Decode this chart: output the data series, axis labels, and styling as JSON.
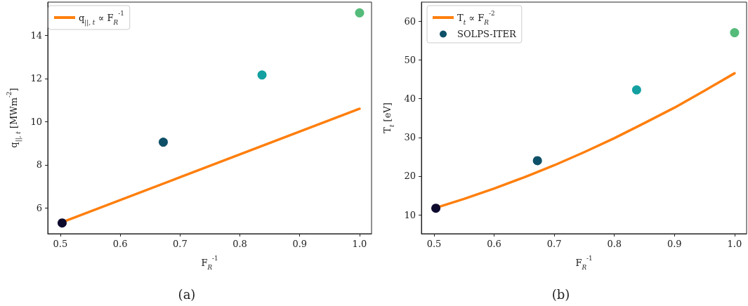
{
  "chart_data": [
    {
      "type": "scatter",
      "xlabel": "F$_{R}$$^{-1}$",
      "ylabel": "q$_{||, t}$ [MWm$^{-2}$]",
      "xlim": [
        0.479,
        1.02
      ],
      "ylim": [
        4.8,
        15.55
      ],
      "xticks": [
        0.5,
        0.6,
        0.7,
        0.8,
        0.9,
        {
          "value": 1,
          "label": "1.0"
        }
      ],
      "yticks": [
        6,
        8,
        10,
        12,
        14
      ],
      "grid": false,
      "legend": "top left",
      "annotations": [
        "(a)"
      ],
      "series": [
        {
          "name": "q$_{||, t}$ ∝ F$_{R}$$^{-1}$",
          "type": "line",
          "color": "#ff7f0e",
          "marker": "none",
          "x": [
            0.503,
            1.0
          ],
          "values": [
            5.33,
            10.6
          ]
        },
        {
          "color": "#0e5068",
          "marker": "circle",
          "colors": [
            "#0d0a2e",
            "#0e5068",
            "#14a0a0",
            "#55bb7a"
          ],
          "x": [
            0.503,
            0.672,
            0.837,
            1.0
          ],
          "values": [
            5.3,
            9.05,
            12.17,
            15.05
          ]
        }
      ]
    },
    {
      "type": "scatter",
      "xlabel": "F$_{R}$$^{-1}$",
      "ylabel": "T$_{t}$ [eV]",
      "xlim": [
        0.479,
        1.02
      ],
      "ylim": [
        5.1,
        65
      ],
      "xticks": [
        0.5,
        0.6,
        0.7,
        0.8,
        0.9,
        {
          "value": 1,
          "label": "1.0"
        }
      ],
      "yticks": [
        10,
        20,
        30,
        40,
        50,
        60
      ],
      "grid": false,
      "legend": "top left",
      "annotations": [
        "(b)"
      ],
      "series": [
        {
          "name": "T$_{t}$ ∝ F$_{R}$$^{-2}$",
          "type": "line",
          "color": "#ff7f0e",
          "marker": "none",
          "x": [
            0.503,
            0.55,
            0.6,
            0.65,
            0.7,
            0.75,
            0.8,
            0.85,
            0.9,
            0.95,
            1.0
          ],
          "values": [
            11.8,
            14.1,
            16.8,
            19.7,
            22.8,
            26.2,
            29.8,
            33.7,
            37.7,
            42.1,
            46.6
          ]
        },
        {
          "name": "SOLPS-ITER",
          "color": "#0e5068",
          "marker": "circle",
          "colors": [
            "#0d0a2e",
            "#0e5068",
            "#14a0a0",
            "#55bb7a"
          ],
          "x": [
            0.503,
            0.672,
            0.837,
            1.0
          ],
          "values": [
            11.7,
            24.0,
            42.3,
            57.1
          ]
        }
      ]
    }
  ]
}
